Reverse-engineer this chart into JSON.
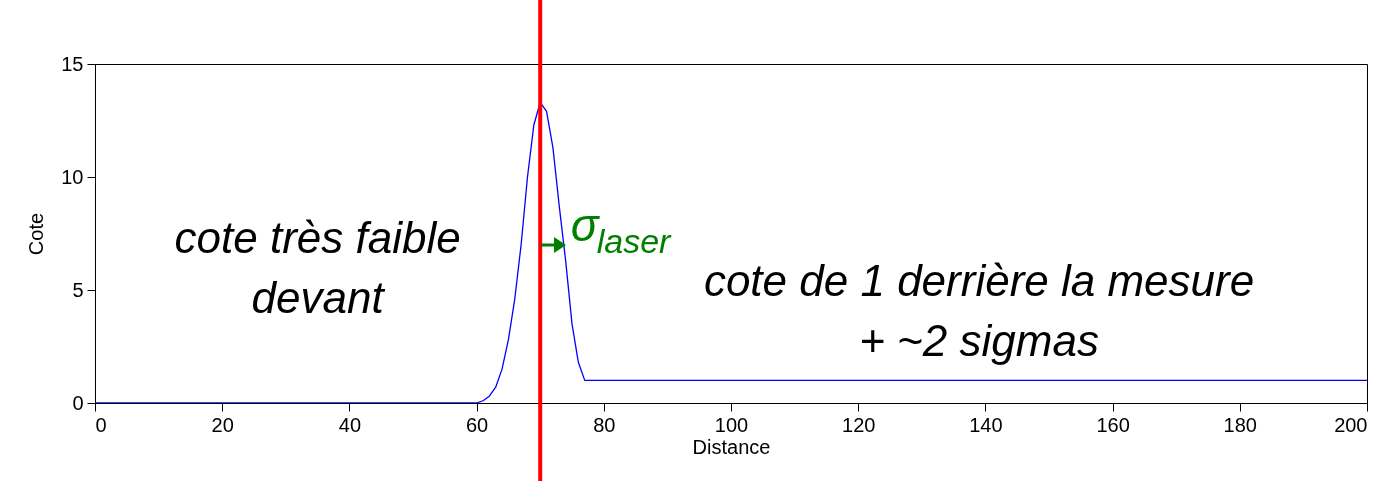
{
  "chart_data": {
    "type": "line",
    "xlabel": "Distance",
    "ylabel": "Cote",
    "x": [
      0,
      60,
      61,
      62,
      63,
      64,
      65,
      66,
      67,
      68,
      69,
      70,
      71,
      72,
      73,
      74,
      75,
      76,
      77,
      200
    ],
    "series": [
      {
        "color": "#0000ff",
        "values": [
          0,
          0,
          0.1,
          0.3,
          0.7,
          1.5,
          2.8,
          4.6,
          7.0,
          10.0,
          12.3,
          13.3,
          12.9,
          11.3,
          8.7,
          6.3,
          3.5,
          1.8,
          1,
          1
        ]
      }
    ],
    "xlim": [
      0,
      200
    ],
    "xticks": [
      0,
      20,
      40,
      60,
      80,
      100,
      120,
      140,
      160,
      180,
      200
    ],
    "ylim": [
      0,
      15
    ],
    "yticks": [
      0,
      5,
      10,
      15
    ],
    "ref_lines": [
      {
        "axis": "x",
        "value": 70,
        "color": "#ff0000"
      }
    ],
    "annotations": [
      "cote très faible\ndevant",
      "σ$_{laser}$",
      "cote de 1 derrière la mesure\n+ ~2 sigmas"
    ],
    "marker": "none",
    "line_style": "solid"
  }
}
